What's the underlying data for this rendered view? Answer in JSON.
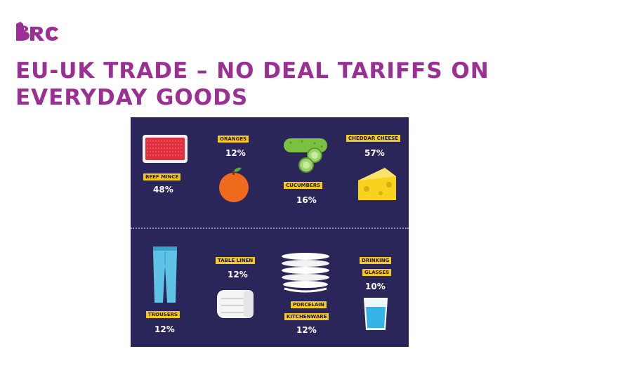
{
  "logo": {
    "text": "BRC",
    "color": "#9b2f93"
  },
  "title": "EU-UK TRADE – NO DEAL TARIFFS ON EVERYDAY GOODS",
  "colors": {
    "title": "#9b2f93",
    "panel": "#2b2659",
    "tag": "#f4c81d",
    "value": "#ffffff"
  },
  "items": [
    {
      "label": "BEEF MINCE",
      "value": "48%",
      "icon": "beef-mince-tray-icon"
    },
    {
      "label": "ORANGES",
      "value": "12%",
      "icon": "orange-icon"
    },
    {
      "label": "CUCUMBERS",
      "value": "16%",
      "icon": "cucumber-icon"
    },
    {
      "label": "CHEDDAR CHEESE",
      "value": "57%",
      "icon": "cheese-icon"
    },
    {
      "label": "TROUSERS",
      "value": "12%",
      "icon": "trousers-icon"
    },
    {
      "label": "TABLE LINEN",
      "value": "12%",
      "icon": "folded-linen-icon"
    },
    {
      "label": "PORCELAIN",
      "label2": "KITCHENWARE",
      "value": "12%",
      "icon": "plates-stack-icon"
    },
    {
      "label": "DRINKING",
      "label2": "GLASSES",
      "value": "10%",
      "icon": "glass-icon"
    }
  ]
}
